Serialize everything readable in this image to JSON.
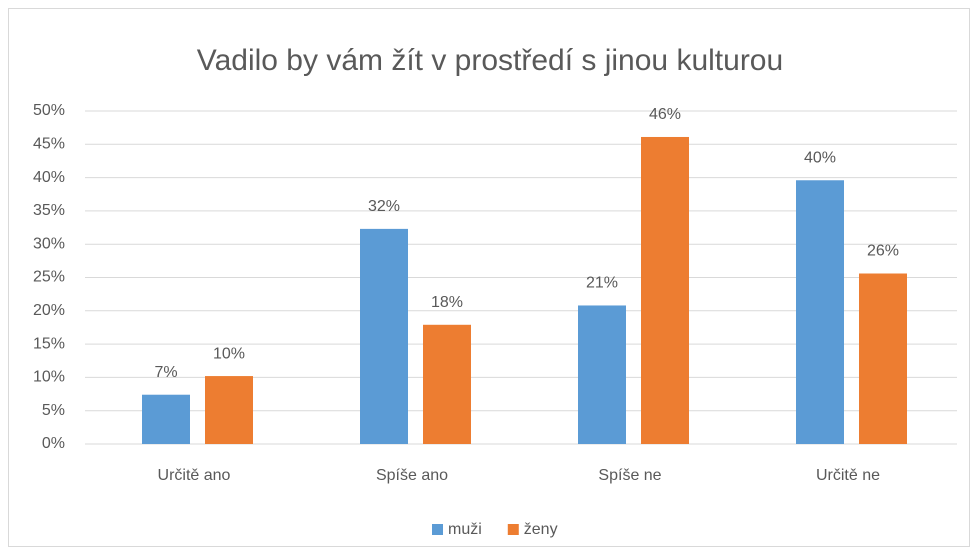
{
  "chart_data": {
    "type": "bar",
    "title": "Vadilo by vám žít v prostředí s jinou kulturou",
    "categories": [
      "Určitě ano",
      "Spíše ano",
      "Spíše ne",
      "Určitě ne"
    ],
    "series": [
      {
        "name": "muži",
        "color": "#5b9bd5",
        "values": [
          7.4,
          32.3,
          20.8,
          39.6
        ],
        "value_labels": [
          "7%",
          "32%",
          "21%",
          "40%"
        ]
      },
      {
        "name": "ženy",
        "color": "#ed7d31",
        "values": [
          10.2,
          17.9,
          46.1,
          25.6
        ],
        "value_labels": [
          "10%",
          "18%",
          "46%",
          "26%"
        ]
      }
    ],
    "ylim": [
      0,
      50
    ],
    "yticks": [
      {
        "value": 0,
        "label": "0%"
      },
      {
        "value": 5,
        "label": "5%"
      },
      {
        "value": 10,
        "label": "10%"
      },
      {
        "value": 15,
        "label": "15%"
      },
      {
        "value": 20,
        "label": "20%"
      },
      {
        "value": 25,
        "label": "25%"
      },
      {
        "value": 30,
        "label": "30%"
      },
      {
        "value": 35,
        "label": "35%"
      },
      {
        "value": 40,
        "label": "40%"
      },
      {
        "value": 45,
        "label": "45%"
      },
      {
        "value": 50,
        "label": "50%"
      }
    ],
    "grid": true,
    "legend": "bottom"
  }
}
